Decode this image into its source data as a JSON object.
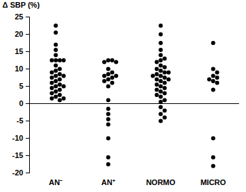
{
  "chart_data": {
    "type": "strip",
    "y_label": "Δ SBP (%)",
    "categories": [
      "AN⁻",
      "AN⁺",
      "NORMO",
      "MICRO"
    ],
    "values": [
      [
        22.5,
        20.5,
        17,
        15.5,
        14,
        12.5,
        12.5,
        12.5,
        12.5,
        11,
        10,
        9.5,
        9,
        8.5,
        8,
        8,
        7.5,
        7,
        6.5,
        6,
        5.5,
        5,
        5,
        4.5,
        4,
        3.5,
        3,
        2.5,
        2,
        1.5,
        1.5,
        1
      ],
      [
        12.5,
        12.5,
        12,
        12,
        10,
        9,
        8.5,
        8,
        8,
        7.5,
        7,
        6.5,
        6,
        5,
        1,
        -1.5,
        -3,
        -4.5,
        -6,
        -10,
        -15.5,
        -17.5
      ],
      [
        22.5,
        20,
        17.5,
        15.5,
        14,
        13,
        12.5,
        12,
        11,
        10.5,
        10,
        9.5,
        9,
        9,
        8.5,
        8,
        8,
        7.5,
        7,
        7,
        6.5,
        6,
        5.5,
        5,
        4.5,
        4,
        3.5,
        3,
        2.5,
        2,
        1,
        0.5,
        -1,
        -2,
        -3,
        -4,
        -5
      ],
      [
        17.5,
        10,
        9,
        8,
        7.5,
        7,
        6.5,
        6,
        4,
        -10,
        -15.5,
        -18
      ]
    ],
    "color": "#000000",
    "hlines": [
      0
    ],
    "ylim": [
      -20,
      25
    ],
    "yticks": [
      -20,
      -15,
      -10,
      -5,
      0,
      5,
      10,
      15,
      20,
      25
    ]
  }
}
